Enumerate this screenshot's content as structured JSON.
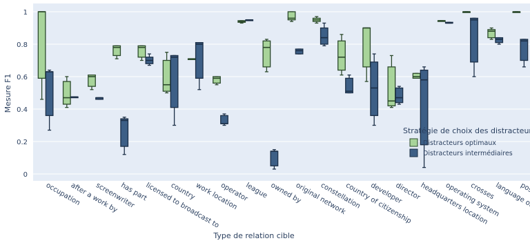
{
  "chart_data": {
    "type": "box",
    "xlabel": "Type de relation cible",
    "ylabel": "Mesure F1",
    "ylim": [
      0,
      1
    ],
    "yticks": [
      0,
      0.2,
      0.4,
      0.6,
      0.8,
      1
    ],
    "ytick_labels": [
      "0",
      "0.2",
      "0.4",
      "0.6",
      "0.8",
      "1"
    ],
    "grid": true,
    "legend": {
      "title": "Stratégie de choix des distracteur",
      "placement": "right",
      "items": [
        "Distracteurs optimaux",
        "Distracteurs intermédiaires"
      ]
    },
    "colors": {
      "optimal_fill": "#a8d49a",
      "optimal_stroke": "#2c4a2c",
      "intermediate_fill": "#3d5f86",
      "intermediate_stroke": "#1c2f47",
      "plot_bg": "#e5ecf6",
      "grid": "#ffffff",
      "text": "#2a3f5f"
    },
    "categories": [
      "occupation",
      "after a work by",
      "screenwriter",
      "has part",
      "licensed to broadcast to",
      "country",
      "work location",
      "operator",
      "league",
      "owned by",
      "original network",
      "constellation",
      "country of citizenship",
      "developer",
      "director",
      "headquarters location",
      "operating system",
      "crosses",
      "language of work or name",
      "position held"
    ],
    "series": [
      {
        "name": "Distracteurs optimaux",
        "boxes": [
          {
            "min": 0.46,
            "q1": 0.59,
            "median": 1.0,
            "q3": 1.0,
            "max": 1.0
          },
          {
            "min": 0.41,
            "q1": 0.43,
            "median": 0.47,
            "q3": 0.57,
            "max": 0.6
          },
          {
            "min": 0.52,
            "q1": 0.54,
            "median": 0.6,
            "q3": 0.61,
            "max": 0.61
          },
          {
            "min": 0.71,
            "q1": 0.73,
            "median": 0.78,
            "q3": 0.79,
            "max": 0.79
          },
          {
            "min": 0.7,
            "q1": 0.72,
            "median": 0.78,
            "q3": 0.79,
            "max": 0.79
          },
          {
            "min": 0.5,
            "q1": 0.51,
            "median": 0.55,
            "q3": 0.7,
            "max": 0.75
          },
          {
            "min": 0.71,
            "q1": 0.71,
            "median": 0.71,
            "q3": 0.71,
            "max": 0.71
          },
          {
            "min": 0.55,
            "q1": 0.56,
            "median": 0.59,
            "q3": 0.6,
            "max": 0.6
          },
          {
            "min": 0.93,
            "q1": 0.935,
            "median": 0.94,
            "q3": 0.945,
            "max": 0.945
          },
          {
            "min": 0.63,
            "q1": 0.66,
            "median": 0.78,
            "q3": 0.82,
            "max": 0.83
          },
          {
            "min": 0.94,
            "q1": 0.95,
            "median": 0.96,
            "q3": 1.0,
            "max": 1.0
          },
          {
            "min": 0.93,
            "q1": 0.94,
            "median": 0.95,
            "q3": 0.96,
            "max": 0.97
          },
          {
            "min": 0.61,
            "q1": 0.64,
            "median": 0.72,
            "q3": 0.82,
            "max": 0.86
          },
          {
            "min": 0.57,
            "q1": 0.66,
            "median": 0.9,
            "q3": 0.9,
            "max": 0.9
          },
          {
            "min": 0.41,
            "q1": 0.42,
            "median": 0.45,
            "q3": 0.66,
            "max": 0.73
          },
          {
            "min": 0.59,
            "q1": 0.59,
            "median": 0.6,
            "q3": 0.62,
            "max": 0.62
          },
          {
            "min": 0.945,
            "q1": 0.945,
            "median": 0.945,
            "q3": 0.945,
            "max": 0.945
          },
          {
            "min": 1.0,
            "q1": 1.0,
            "median": 1.0,
            "q3": 1.0,
            "max": 1.0
          },
          {
            "min": 0.83,
            "q1": 0.84,
            "median": 0.88,
            "q3": 0.89,
            "max": 0.9
          },
          {
            "min": 1.0,
            "q1": 1.0,
            "median": 1.0,
            "q3": 1.0,
            "max": 1.0
          }
        ]
      },
      {
        "name": "Distracteurs intermédiaires",
        "boxes": [
          {
            "min": 0.27,
            "q1": 0.36,
            "median": 0.63,
            "q3": 0.63,
            "max": 0.64
          },
          {
            "min": 0.475,
            "q1": 0.475,
            "median": 0.475,
            "q3": 0.475,
            "max": 0.475
          },
          {
            "min": 0.46,
            "q1": 0.46,
            "median": 0.47,
            "q3": 0.47,
            "max": 0.47
          },
          {
            "min": 0.12,
            "q1": 0.17,
            "median": 0.33,
            "q3": 0.34,
            "max": 0.35
          },
          {
            "min": 0.67,
            "q1": 0.68,
            "median": 0.7,
            "q3": 0.72,
            "max": 0.74
          },
          {
            "min": 0.3,
            "q1": 0.41,
            "median": 0.72,
            "q3": 0.73,
            "max": 0.73
          },
          {
            "min": 0.52,
            "q1": 0.59,
            "median": 0.8,
            "q3": 0.81,
            "max": 0.81
          },
          {
            "min": 0.3,
            "q1": 0.31,
            "median": 0.31,
            "q3": 0.36,
            "max": 0.37
          },
          {
            "min": 0.95,
            "q1": 0.95,
            "median": 0.95,
            "q3": 0.95,
            "max": 0.95
          },
          {
            "min": 0.03,
            "q1": 0.05,
            "median": 0.14,
            "q3": 0.14,
            "max": 0.15
          },
          {
            "min": 0.74,
            "q1": 0.74,
            "median": 0.76,
            "q3": 0.77,
            "max": 0.77
          },
          {
            "min": 0.79,
            "q1": 0.8,
            "median": 0.84,
            "q3": 0.9,
            "max": 0.93
          },
          {
            "min": 0.5,
            "q1": 0.5,
            "median": 0.51,
            "q3": 0.59,
            "max": 0.61
          },
          {
            "min": 0.3,
            "q1": 0.36,
            "median": 0.53,
            "q3": 0.69,
            "max": 0.74
          },
          {
            "min": 0.43,
            "q1": 0.44,
            "median": 0.47,
            "q3": 0.53,
            "max": 0.54
          },
          {
            "min": 0.04,
            "q1": 0.18,
            "median": 0.58,
            "q3": 0.64,
            "max": 0.66
          },
          {
            "min": 0.93,
            "q1": 0.93,
            "median": 0.93,
            "q3": 0.935,
            "max": 0.935
          },
          {
            "min": 0.6,
            "q1": 0.69,
            "median": 0.95,
            "q3": 0.96,
            "max": 0.96
          },
          {
            "min": 0.8,
            "q1": 0.81,
            "median": 0.83,
            "q3": 0.84,
            "max": 0.84
          },
          {
            "min": 0.66,
            "q1": 0.7,
            "median": 0.82,
            "q3": 0.83,
            "max": 0.83
          }
        ]
      }
    ]
  }
}
